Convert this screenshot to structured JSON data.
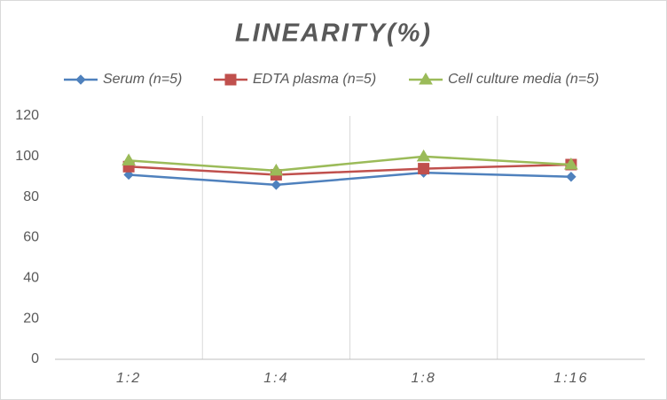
{
  "chart_data": {
    "type": "line",
    "title": "LINEARITY(%)",
    "categories": [
      "1:2",
      "1:4",
      "1:8",
      "1:16"
    ],
    "series": [
      {
        "name": "Serum (n=5)",
        "color": "#4f81bd",
        "marker": "diamond",
        "values": [
          91,
          86,
          92,
          90
        ]
      },
      {
        "name": "EDTA plasma (n=5)",
        "color": "#c0504d",
        "marker": "square",
        "values": [
          95,
          91,
          94,
          96
        ]
      },
      {
        "name": "Cell culture media (n=5)",
        "color": "#9bbb59",
        "marker": "triangle",
        "values": [
          98,
          93,
          100,
          96
        ]
      }
    ],
    "ylim": [
      0,
      120
    ],
    "yticks": [
      0,
      20,
      40,
      60,
      80,
      100,
      120
    ],
    "grid": "x",
    "legend": "top"
  }
}
